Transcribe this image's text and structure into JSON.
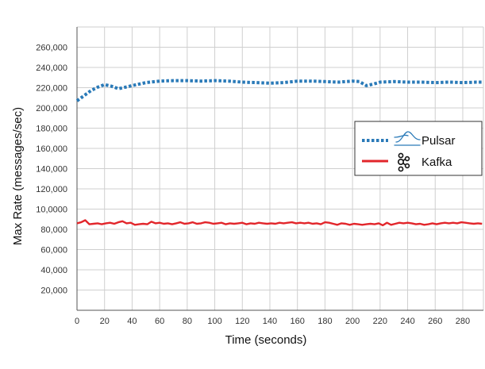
{
  "chart_data": {
    "type": "line",
    "xlabel": "Time (seconds)",
    "ylabel": "Max Rate (messages/sec)",
    "xlim": [
      0,
      295
    ],
    "ylim": [
      0,
      280000
    ],
    "x_ticks": [
      0,
      20,
      40,
      60,
      80,
      100,
      120,
      140,
      160,
      180,
      200,
      220,
      240,
      260,
      280
    ],
    "x_tick_labels": [
      "0",
      "20",
      "40",
      "60",
      "80",
      "100",
      "120",
      "140",
      "160",
      "180",
      "200",
      "220",
      "240",
      "260",
      "280"
    ],
    "y_ticks": [
      20000,
      40000,
      60000,
      80000,
      100000,
      120000,
      140000,
      160000,
      180000,
      200000,
      220000,
      240000,
      260000
    ],
    "y_tick_labels": [
      "20,000",
      "40,000",
      "60,000",
      "80,000",
      "10,0000",
      "120,000",
      "140,000",
      "160,000",
      "180,000",
      "200,000",
      "220,000",
      "240,000",
      "260,000"
    ],
    "grid": true,
    "legend_position": "right",
    "series": [
      {
        "name": "Pulsar",
        "color": "#2a7ab8",
        "style": "dotted",
        "icon": "pulsar-logo-icon",
        "x": [
          0,
          5,
          10,
          15,
          20,
          25,
          30,
          35,
          40,
          50,
          60,
          70,
          80,
          90,
          100,
          110,
          120,
          130,
          140,
          150,
          160,
          170,
          180,
          190,
          200,
          205,
          210,
          215,
          220,
          230,
          240,
          250,
          260,
          270,
          280,
          290,
          295
        ],
        "y": [
          207000,
          212000,
          217000,
          220500,
          223000,
          221500,
          219000,
          220500,
          222000,
          225000,
          226500,
          227000,
          227000,
          226500,
          227000,
          226500,
          225500,
          225000,
          224500,
          225000,
          226500,
          226500,
          226000,
          225500,
          226500,
          226000,
          222000,
          223500,
          225500,
          226000,
          225500,
          225500,
          225000,
          225500,
          225000,
          225500,
          225500
        ]
      },
      {
        "name": "Kafka",
        "color": "#e2262b",
        "style": "solid",
        "icon": "kafka-logo-icon",
        "x": [
          0,
          3,
          6,
          9,
          12,
          15,
          18,
          21,
          24,
          27,
          30,
          33,
          36,
          39,
          42,
          45,
          48,
          51,
          54,
          57,
          60,
          63,
          66,
          69,
          72,
          75,
          78,
          81,
          84,
          87,
          90,
          93,
          96,
          99,
          102,
          105,
          108,
          111,
          114,
          117,
          120,
          123,
          126,
          129,
          132,
          135,
          138,
          141,
          144,
          147,
          150,
          153,
          156,
          159,
          162,
          165,
          168,
          171,
          174,
          177,
          180,
          183,
          186,
          189,
          192,
          195,
          198,
          201,
          204,
          207,
          210,
          213,
          216,
          219,
          222,
          225,
          228,
          231,
          234,
          237,
          240,
          243,
          246,
          249,
          252,
          255,
          258,
          261,
          264,
          267,
          270,
          273,
          276,
          279,
          282,
          285,
          288,
          291,
          294
        ],
        "y": [
          86000,
          87000,
          89000,
          85000,
          85500,
          86000,
          85000,
          86000,
          86500,
          85500,
          87000,
          88000,
          86000,
          86500,
          84500,
          85000,
          85500,
          85000,
          87500,
          86000,
          86500,
          85500,
          86000,
          85000,
          86000,
          87000,
          85500,
          86000,
          87000,
          85500,
          86000,
          87000,
          86500,
          85500,
          86000,
          86500,
          85000,
          86000,
          85500,
          86000,
          86500,
          85000,
          86000,
          85500,
          86500,
          86000,
          85500,
          86000,
          85500,
          86500,
          86000,
          86500,
          87000,
          86000,
          86500,
          86000,
          86500,
          85500,
          86000,
          85000,
          87000,
          86500,
          85500,
          84500,
          86000,
          85500,
          84500,
          85500,
          85000,
          84500,
          85000,
          85500,
          85000,
          86000,
          84000,
          86500,
          84500,
          85500,
          86500,
          86000,
          86500,
          86000,
          85000,
          85500,
          84500,
          85000,
          86000,
          85000,
          86000,
          86500,
          86000,
          86500,
          86000,
          87000,
          86500,
          86000,
          85500,
          86000,
          85500
        ]
      }
    ]
  }
}
